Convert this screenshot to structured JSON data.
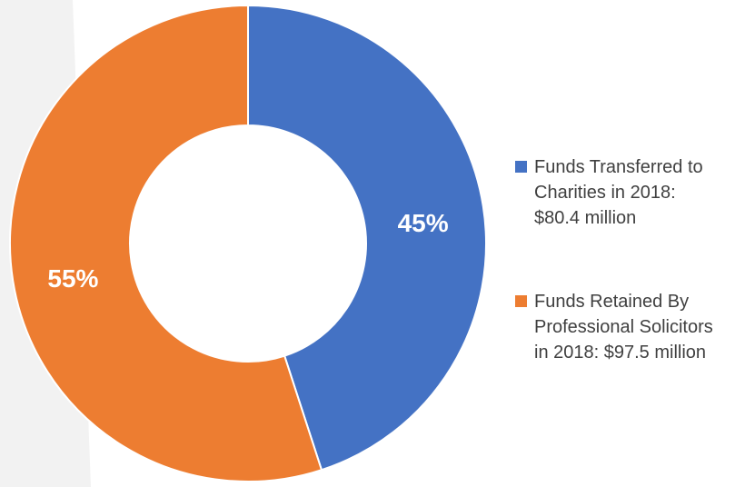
{
  "chart_data": {
    "type": "pie",
    "donut": true,
    "categories": [
      "Funds Transferred to Charities in 2018: $80.4 million",
      "Funds Retained By Professional Solicitors in 2018: $97.5 million"
    ],
    "values": [
      45,
      55
    ],
    "value_labels": [
      "45%",
      "55%"
    ],
    "colors": [
      "#4472c4",
      "#ed7d31"
    ],
    "legend": "right"
  }
}
